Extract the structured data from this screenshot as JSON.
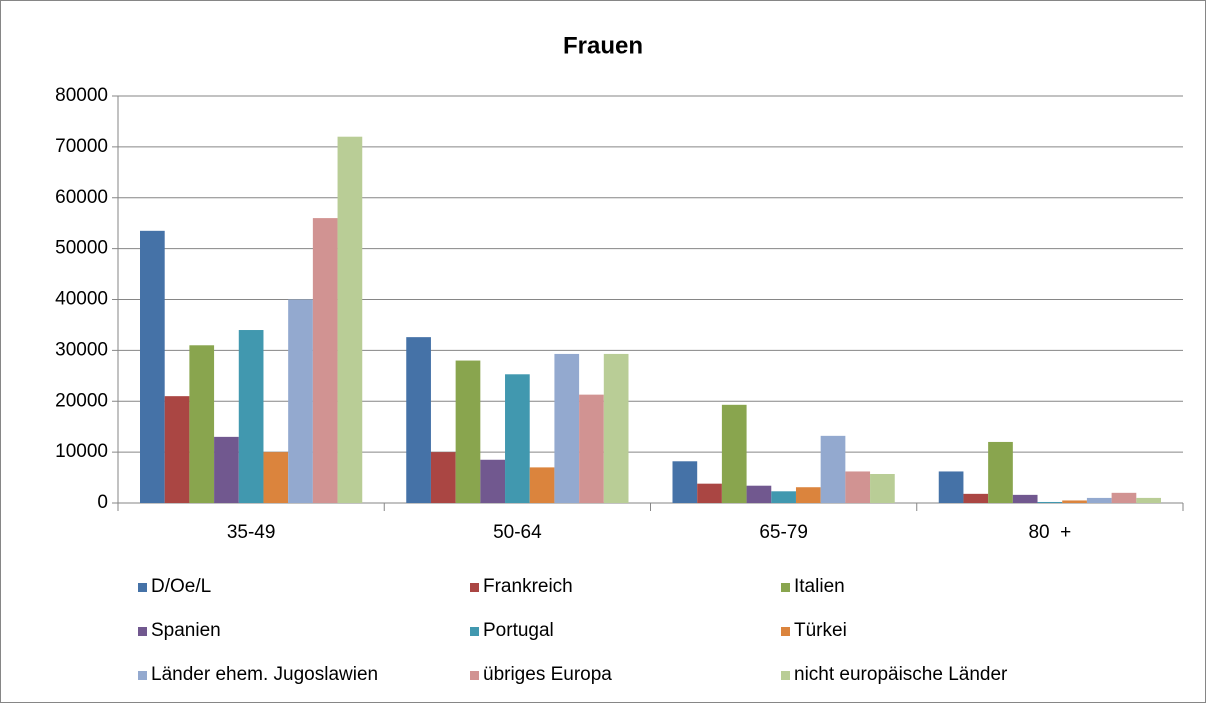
{
  "chart_data": {
    "type": "bar",
    "title": "Frauen",
    "categories": [
      "35-49",
      "50-64",
      "65-79",
      "80  +"
    ],
    "series": [
      {
        "name": "D/Oe/L",
        "color": "#4572a7",
        "values": [
          53500,
          32600,
          8200,
          6200
        ]
      },
      {
        "name": "Frankreich",
        "color": "#aa4643",
        "values": [
          21000,
          10000,
          3800,
          1800
        ]
      },
      {
        "name": "Italien",
        "color": "#89a54e",
        "values": [
          31000,
          28000,
          19300,
          12000
        ]
      },
      {
        "name": "Spanien",
        "color": "#71588f",
        "values": [
          13000,
          8500,
          3400,
          1600
        ]
      },
      {
        "name": "Portugal",
        "color": "#4198af",
        "values": [
          34000,
          25300,
          2300,
          200
        ]
      },
      {
        "name": "Türkei",
        "color": "#db843d",
        "values": [
          10000,
          7000,
          3100,
          500
        ]
      },
      {
        "name": "Länder ehem. Jugoslawien",
        "color": "#93a9cf",
        "values": [
          40000,
          29300,
          13200,
          1000
        ]
      },
      {
        "name": "übriges Europa",
        "color": "#d19392",
        "values": [
          56000,
          21300,
          6200,
          2000
        ]
      },
      {
        "name": "nicht europäische Länder",
        "color": "#b9cd96",
        "values": [
          72000,
          29300,
          5700,
          1000
        ]
      }
    ],
    "ylim": [
      0,
      80000
    ],
    "yticks": [
      0,
      10000,
      20000,
      30000,
      40000,
      50000,
      60000,
      70000,
      80000
    ],
    "grid": true,
    "legend": "bottom"
  }
}
